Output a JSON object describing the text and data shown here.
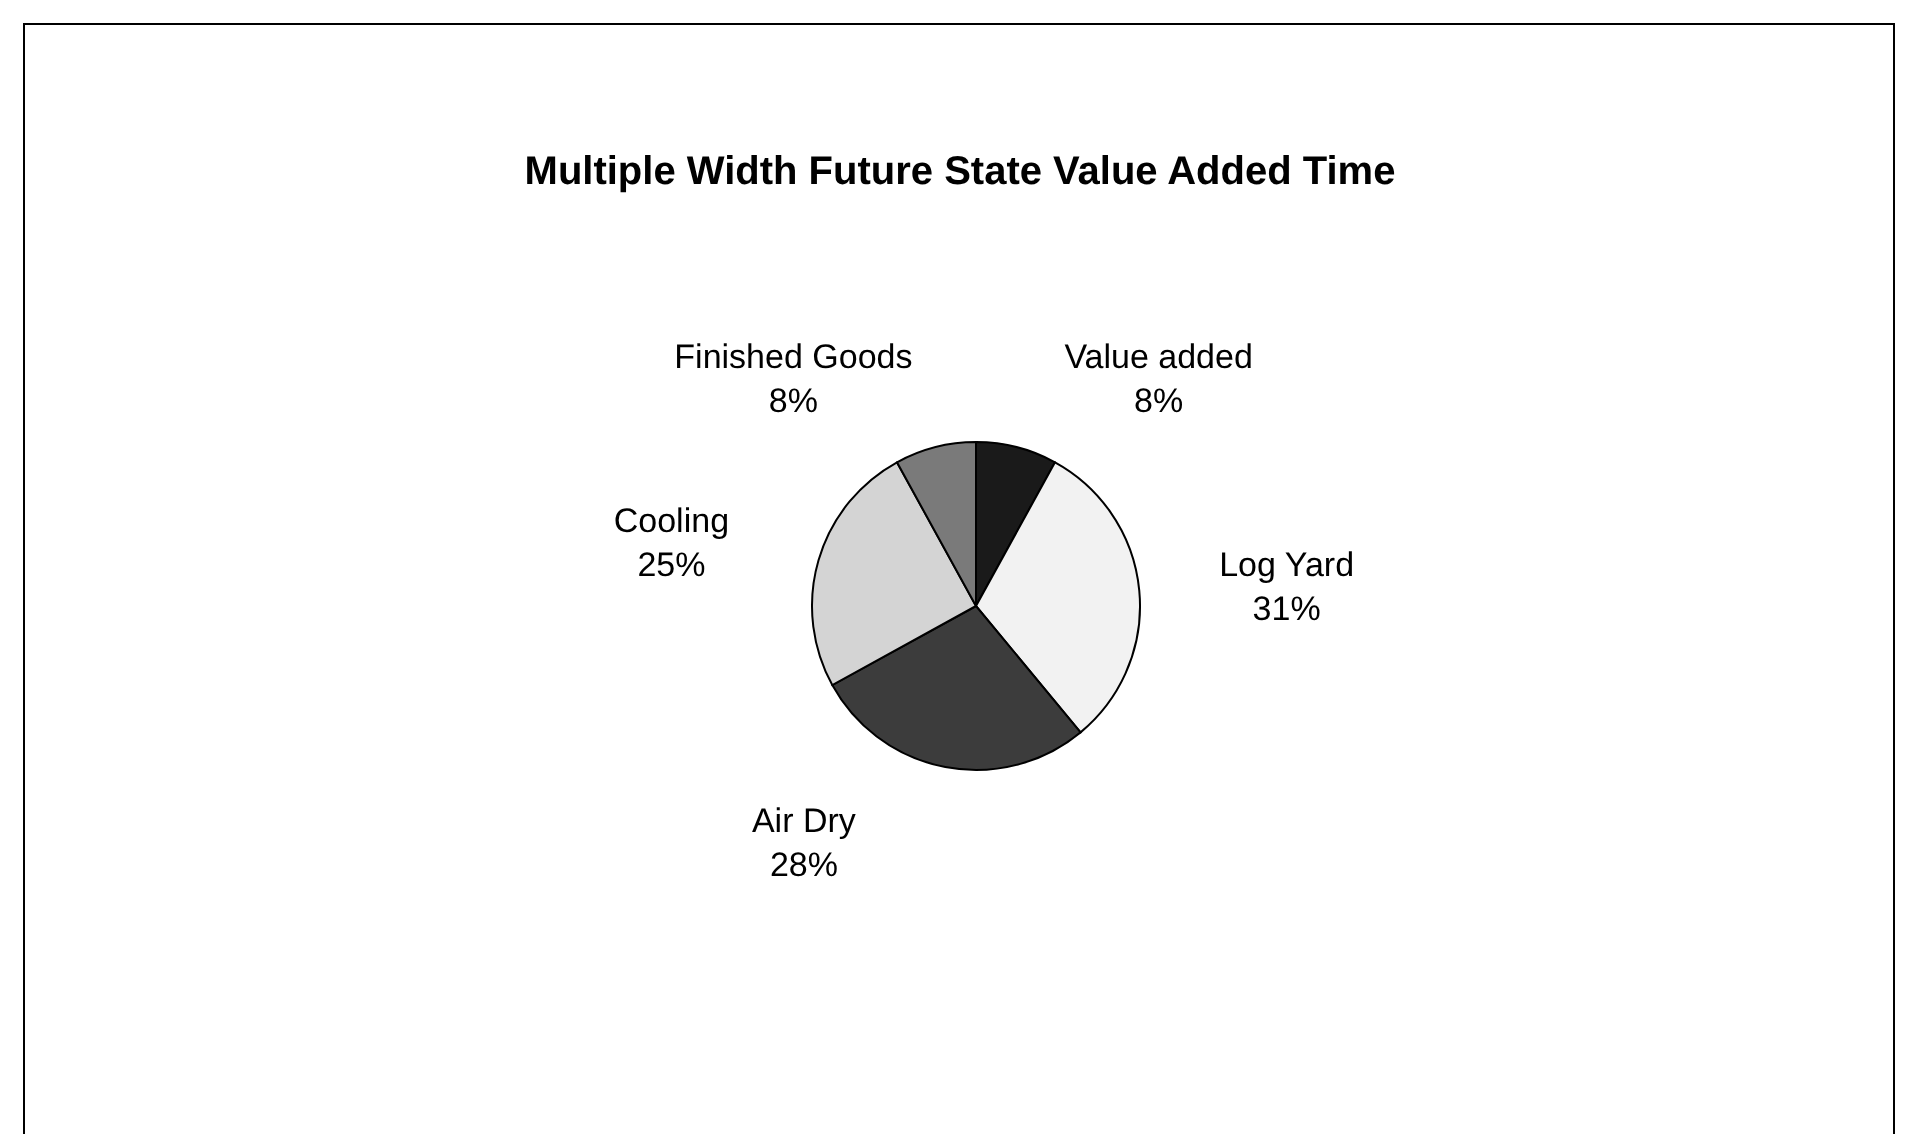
{
  "chart_data": {
    "type": "pie",
    "title": "Multiple Width Future State Value Added Time",
    "categories": [
      "Value added",
      "Log Yard",
      "Air Dry",
      "Cooling",
      "Finished Goods"
    ],
    "values": [
      8,
      31,
      28,
      25,
      8
    ],
    "value_labels": [
      "8%",
      "31%",
      "28%",
      "25%",
      "8%"
    ],
    "colors": [
      "#1a1a1a",
      "#f2f2f2",
      "#3c3c3c",
      "#d4d4d4",
      "#7a7a7a"
    ],
    "legend": false
  }
}
